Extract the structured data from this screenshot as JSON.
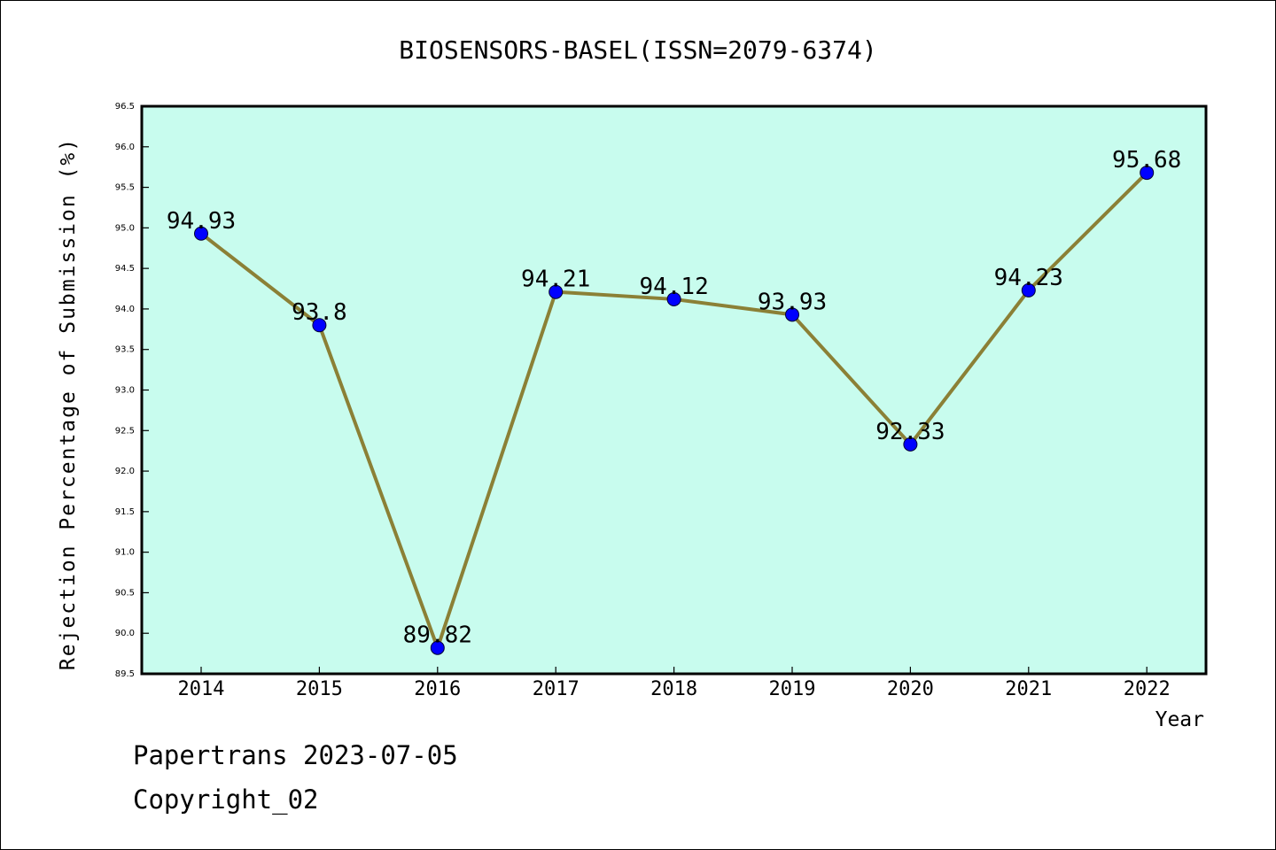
{
  "chart_data": {
    "type": "line",
    "title": "BIOSENSORS-BASEL(ISSN=2079-6374)",
    "xlabel": "Year",
    "ylabel": "Rejection Percentage of Submission (%)",
    "categories": [
      "2014",
      "2015",
      "2016",
      "2017",
      "2018",
      "2019",
      "2020",
      "2021",
      "2022"
    ],
    "series": [
      {
        "values": [
          94.93,
          93.8,
          89.82,
          94.21,
          94.12,
          93.93,
          92.33,
          94.23,
          95.68
        ],
        "labels": [
          "94.93",
          "93.8",
          "89.82",
          "94.21",
          "94.12",
          "93.93",
          "92.33",
          "94.23",
          "95.68"
        ]
      }
    ],
    "ylim": [
      89.5,
      96.5
    ],
    "yticks": [
      "89.5",
      "90.0",
      "90.5",
      "91.0",
      "91.5",
      "92.0",
      "92.5",
      "93.0",
      "93.5",
      "94.0",
      "94.5",
      "95.0",
      "95.5",
      "96.0",
      "96.5"
    ],
    "grid": false,
    "colors": {
      "plot_background": "#c8fcee",
      "line": "#8b8036",
      "marker": "#0000ff"
    }
  },
  "footer": {
    "line1": "Papertrans 2023-07-05",
    "line2": "Copyright_02"
  }
}
